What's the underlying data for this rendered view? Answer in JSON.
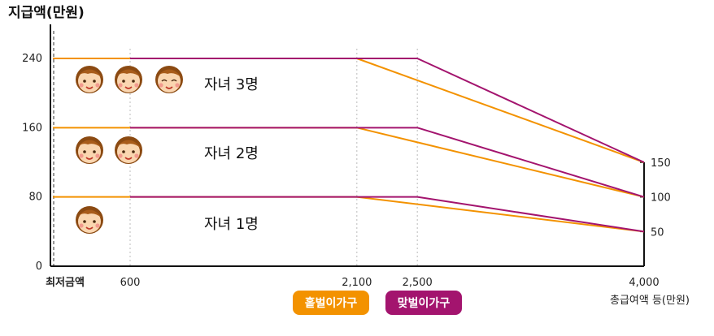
{
  "chart_data": {
    "type": "line",
    "ylabel": "지급액(만원)",
    "xlabel": "총급여액 등(만원)",
    "x_ticks": [
      {
        "value": 600,
        "label": "600"
      },
      {
        "value": 2100,
        "label": "2,100"
      },
      {
        "value": 2500,
        "label": "2,500"
      },
      {
        "value": 4000,
        "label": "4,000"
      }
    ],
    "x_min_label": "최저금액",
    "y_ticks": [
      0,
      80,
      160,
      240
    ],
    "right_ticks": [
      50,
      100,
      150
    ],
    "xlim": [
      0,
      4000
    ],
    "ylim": [
      0,
      270
    ],
    "groups": [
      {
        "label": "자녀 1명",
        "faces": 1,
        "series": [
          {
            "name": "홑벌이가구",
            "color": "#f39200",
            "x": [
              0,
              2100,
              4000
            ],
            "y": [
              80,
              80,
              40
            ]
          },
          {
            "name": "맞벌이가구",
            "color": "#a3146e",
            "x": [
              600,
              2500,
              4000
            ],
            "y": [
              80,
              80,
              40
            ]
          }
        ]
      },
      {
        "label": "자녀 2명",
        "faces": 2,
        "series": [
          {
            "name": "홑벌이가구",
            "color": "#f39200",
            "x": [
              0,
              2100,
              4000
            ],
            "y": [
              160,
              160,
              80
            ]
          },
          {
            "name": "맞벌이가구",
            "color": "#a3146e",
            "x": [
              600,
              2500,
              4000
            ],
            "y": [
              160,
              160,
              80
            ]
          }
        ]
      },
      {
        "label": "자녀 3명",
        "faces": 3,
        "series": [
          {
            "name": "홑벌이가구",
            "color": "#f39200",
            "x": [
              0,
              2100,
              4000
            ],
            "y": [
              240,
              240,
              120
            ]
          },
          {
            "name": "맞벌이가구",
            "color": "#a3146e",
            "x": [
              600,
              2500,
              4000
            ],
            "y": [
              240,
              240,
              120
            ]
          }
        ]
      }
    ],
    "legend": [
      {
        "label": "홑벌이가구",
        "color": "#f39200"
      },
      {
        "label": "맞벌이가구",
        "color": "#a3146e"
      }
    ]
  }
}
